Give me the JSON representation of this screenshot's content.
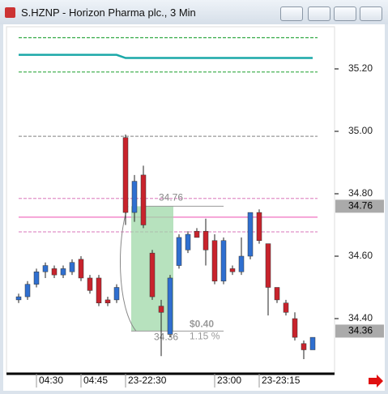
{
  "title": "S.HZNP - Horizon Pharma plc., 3 Min",
  "chart_data": {
    "type": "candlestick",
    "categories": [
      null,
      null,
      "04:30",
      null,
      null,
      null,
      null,
      "04:45",
      null,
      null,
      null,
      null,
      "23-22:30",
      null,
      null,
      null,
      null,
      null,
      null,
      null,
      null,
      null,
      "23:00",
      null,
      null,
      null,
      null,
      "23-23:15",
      null,
      null,
      null,
      null,
      null,
      null
    ],
    "open": [
      34.46,
      34.47,
      34.51,
      34.55,
      34.56,
      34.54,
      34.55,
      34.59,
      34.53,
      34.53,
      34.46,
      34.46,
      34.98,
      34.74,
      34.86,
      34.61,
      34.44,
      34.35,
      34.57,
      34.62,
      34.68,
      34.68,
      34.65,
      34.52,
      34.56,
      34.55,
      34.6,
      34.74,
      34.64,
      34.5,
      34.45,
      34.4,
      34.32,
      34.3
    ],
    "high": [
      34.48,
      34.52,
      34.56,
      34.58,
      34.57,
      34.57,
      34.59,
      34.6,
      34.54,
      34.54,
      34.47,
      34.51,
      34.99,
      34.86,
      34.89,
      34.62,
      34.46,
      34.54,
      34.67,
      34.68,
      34.69,
      34.72,
      34.67,
      34.66,
      34.57,
      34.66,
      34.74,
      34.75,
      34.64,
      34.5,
      34.46,
      34.42,
      34.33,
      34.34
    ],
    "low": [
      34.45,
      34.46,
      34.5,
      34.53,
      34.53,
      34.53,
      34.54,
      34.52,
      34.48,
      34.44,
      34.44,
      34.45,
      34.7,
      34.71,
      34.69,
      34.46,
      34.28,
      34.34,
      34.56,
      34.61,
      34.66,
      34.57,
      34.51,
      34.51,
      34.54,
      34.54,
      34.59,
      34.64,
      34.41,
      34.45,
      34.41,
      34.33,
      34.27,
      34.3
    ],
    "close": [
      34.47,
      34.51,
      34.55,
      34.57,
      34.54,
      34.56,
      34.58,
      34.53,
      34.49,
      34.45,
      34.45,
      34.5,
      34.74,
      34.84,
      34.7,
      34.47,
      34.42,
      34.53,
      34.66,
      34.67,
      34.66,
      34.62,
      34.52,
      34.65,
      34.55,
      34.6,
      34.74,
      34.65,
      34.5,
      34.46,
      34.42,
      34.34,
      34.3,
      34.34
    ],
    "up_color": "#2f6fd0",
    "down_color": "#c8232c",
    "series": [
      {
        "color": "#1aa8a8",
        "values": [
          35.245,
          35.245,
          35.245,
          35.245,
          35.245,
          35.245,
          35.245,
          35.245,
          35.245,
          35.245,
          35.245,
          35.245,
          35.235,
          35.235,
          35.235,
          35.235,
          35.235,
          35.235,
          35.235,
          35.235,
          35.235,
          35.235,
          35.235,
          35.235,
          35.235,
          35.235,
          35.235,
          35.235,
          35.235,
          35.235,
          35.235,
          35.235,
          35.235,
          35.235
        ]
      }
    ],
    "levels": [
      {
        "value": 35.3,
        "color": "#33aa44",
        "dash": true
      },
      {
        "value": 35.19,
        "color": "#33aa44",
        "dash": true
      },
      {
        "value": 34.984,
        "color": "#999999",
        "dash": true
      },
      {
        "value": 34.785,
        "color": "#e090c8",
        "dash": true
      },
      {
        "value": 34.725,
        "color": "#f070c0",
        "dash": false
      },
      {
        "value": 34.678,
        "color": "#e090c8",
        "dash": true
      }
    ],
    "ylim": [
      34.226,
      35.335
    ],
    "yticks": [
      {
        "value": 34.4,
        "label": "34.40"
      },
      {
        "value": 34.6,
        "label": "34.60"
      },
      {
        "value": 34.8,
        "label": "34.80"
      },
      {
        "value": 35.0,
        "label": "35.00"
      },
      {
        "value": 35.2,
        "label": "35.20"
      }
    ],
    "price_labels": [
      {
        "value": 34.76,
        "label": "34.76"
      },
      {
        "value": 34.36,
        "label": "34.36"
      }
    ],
    "measure": {
      "from": {
        "value": 34.76,
        "label": "34.76"
      },
      "to": {
        "value": 34.36,
        "label": "34.36"
      },
      "change": {
        "value": 0.4,
        "label": "$0.40"
      },
      "percent": {
        "value": 1.15,
        "label": "1.15 %"
      }
    }
  }
}
